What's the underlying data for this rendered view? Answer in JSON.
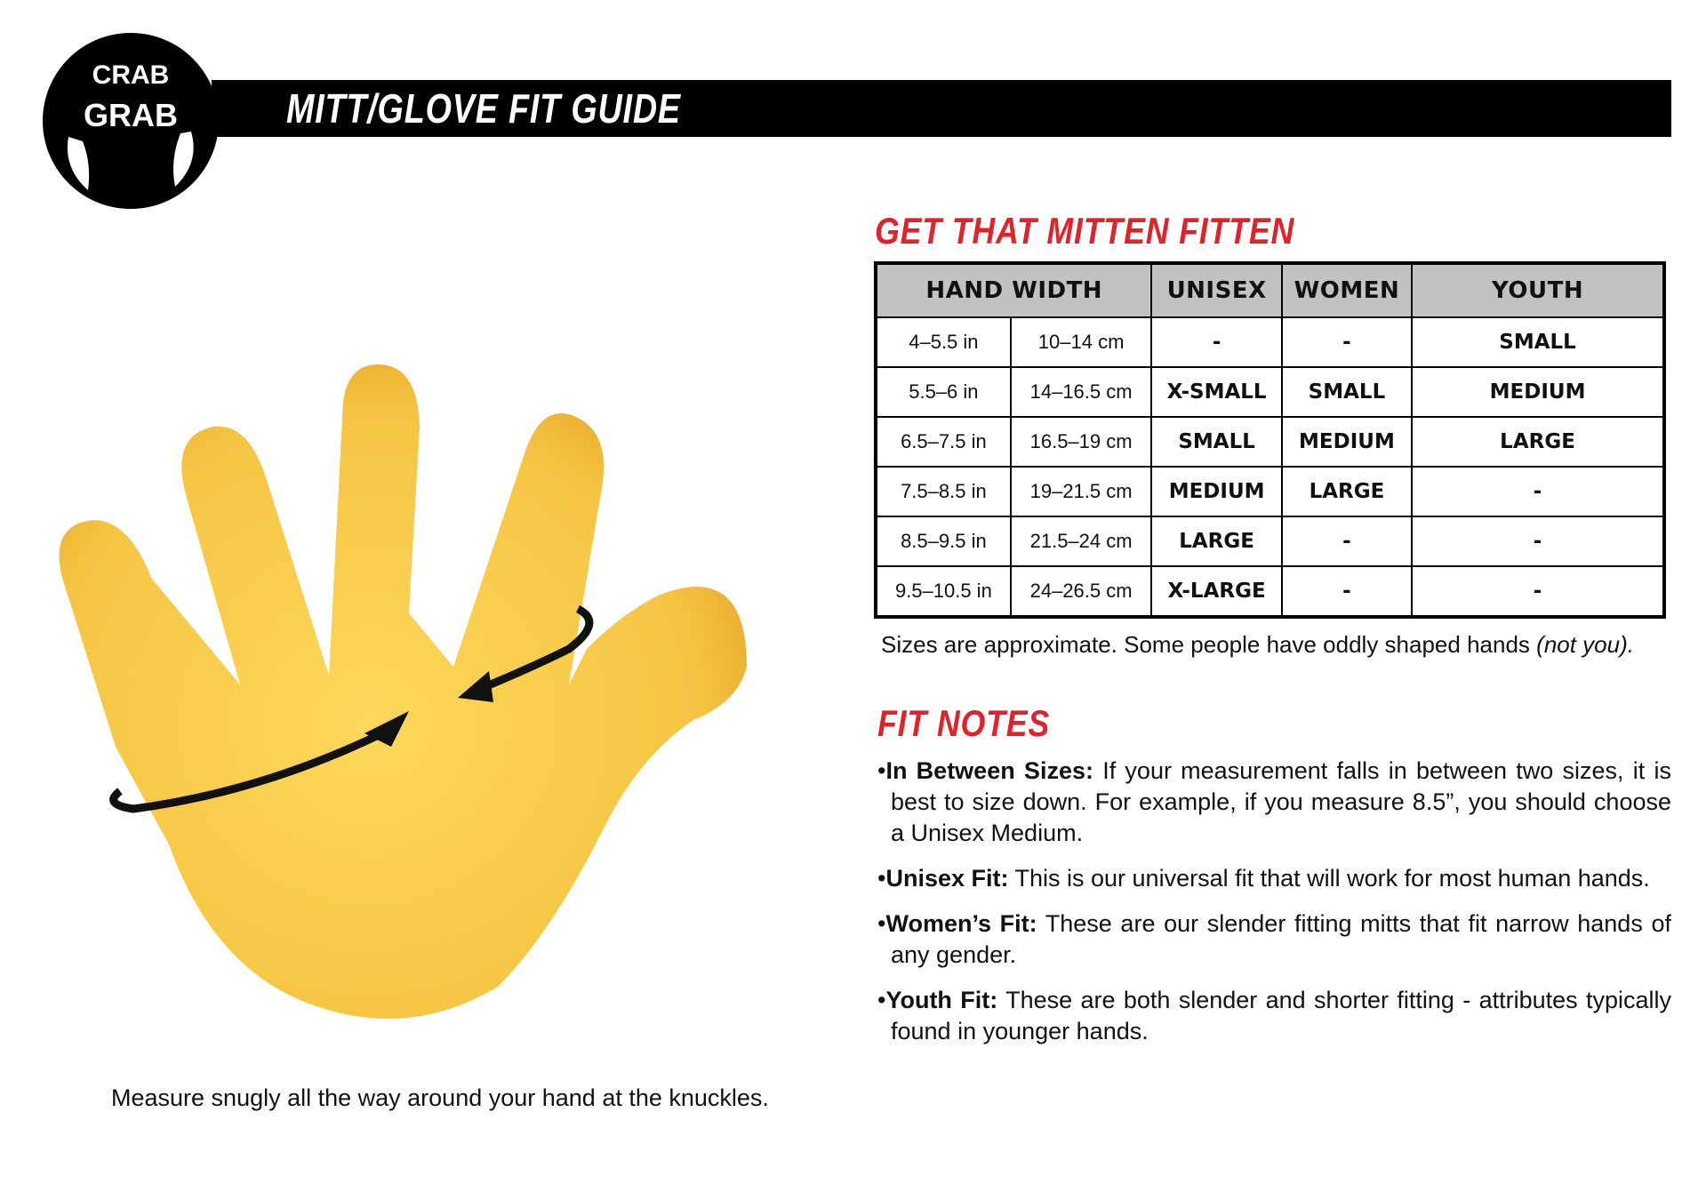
{
  "brand": {
    "logo_text": "CRAB GRAB"
  },
  "header": {
    "title": "MITT/GLOVE FIT GUIDE"
  },
  "size_chart": {
    "title": "GET THAT MITTEN FITTEN",
    "headers": [
      "HAND WIDTH",
      "UNISEX",
      "WOMEN",
      "YOUTH"
    ],
    "rows": [
      {
        "in": "4–5.5 in",
        "cm": "10–14 cm",
        "unisex": "-",
        "women": "-",
        "youth": "SMALL"
      },
      {
        "in": "5.5–6 in",
        "cm": "14–16.5 cm",
        "unisex": "X-SMALL",
        "women": "SMALL",
        "youth": "MEDIUM"
      },
      {
        "in": "6.5–7.5 in",
        "cm": "16.5–19 cm",
        "unisex": "SMALL",
        "women": "MEDIUM",
        "youth": "LARGE"
      },
      {
        "in": "7.5–8.5 in",
        "cm": "19–21.5 cm",
        "unisex": "MEDIUM",
        "women": "LARGE",
        "youth": "-"
      },
      {
        "in": "8.5–9.5 in",
        "cm": "21.5–24 cm",
        "unisex": "LARGE",
        "women": "-",
        "youth": "-"
      },
      {
        "in": "9.5–10.5 in",
        "cm": "24–26.5 cm",
        "unisex": "X-LARGE",
        "women": "-",
        "youth": "-"
      }
    ],
    "note": "Sizes are approximate. Some people have oddly shaped hands",
    "note_italic": "(not you)."
  },
  "fit_notes": {
    "title": "FIT NOTES",
    "items": [
      {
        "label": "In Between Sizes:",
        "text": " If your measurement falls in between two sizes, it is best to size down. For example, if you measure 8.5”, you should choose a Unisex Medium."
      },
      {
        "label": "Unisex Fit:",
        "text": " This is our universal fit that will work for most human hands."
      },
      {
        "label": "Women’s Fit:",
        "text": " These are our slender fitting mitts that fit narrow hands of any gender."
      },
      {
        "label": "Youth Fit:",
        "text": " These are both slender and shorter fitting - attributes typically found in younger hands."
      }
    ]
  },
  "illustration": {
    "caption": "Measure snugly all the way around your hand at the knuckles.",
    "hand_color": "#f7c948"
  }
}
